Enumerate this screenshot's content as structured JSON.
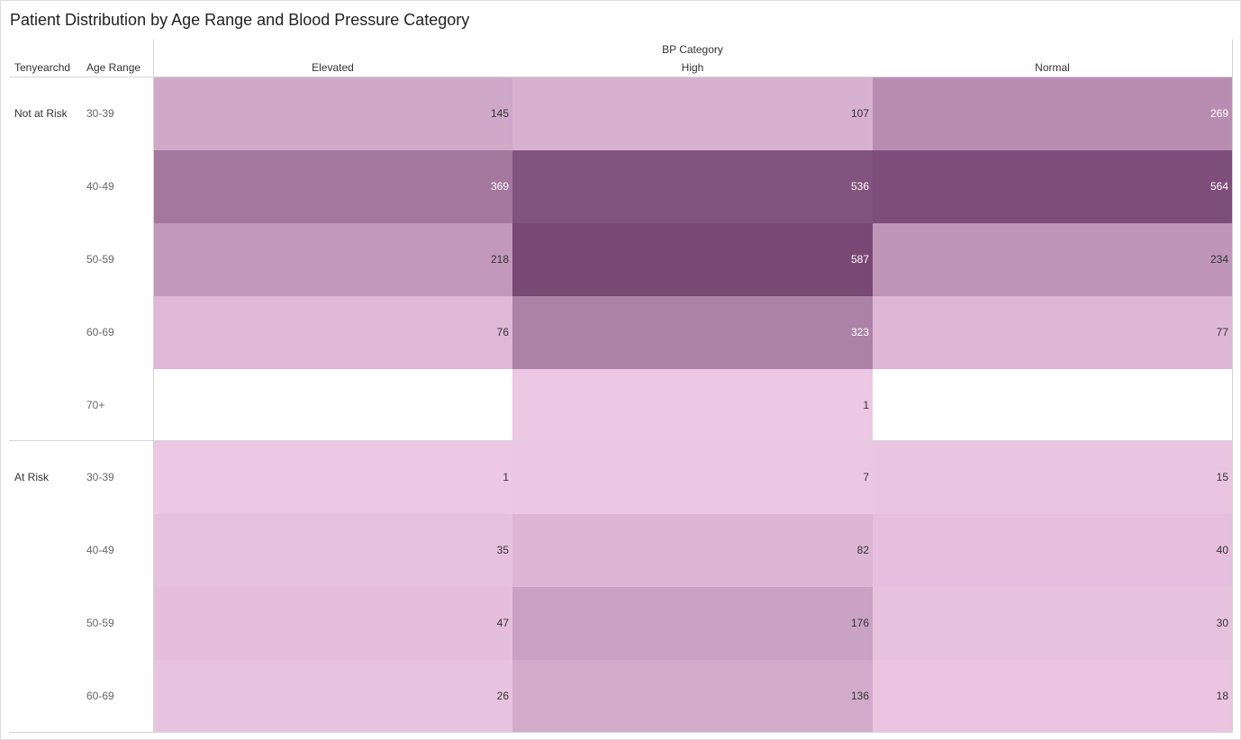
{
  "chart_data": {
    "type": "heatmap",
    "title": "Patient Distribution by Age Range and Blood Pressure Category",
    "column_group_label": "BP Category",
    "row_header_labels": [
      "Tenyearchd",
      "Age Range"
    ],
    "columns": [
      "Elevated",
      "High",
      "Normal"
    ],
    "groups": [
      {
        "name": "Not at Risk",
        "rows": [
          {
            "age": "30-39",
            "values": [
              145,
              107,
              269
            ]
          },
          {
            "age": "40-49",
            "values": [
              369,
              536,
              564
            ]
          },
          {
            "age": "50-59",
            "values": [
              218,
              587,
              234
            ]
          },
          {
            "age": "60-69",
            "values": [
              76,
              323,
              77
            ]
          },
          {
            "age": "70+",
            "values": [
              null,
              1,
              null
            ]
          }
        ]
      },
      {
        "name": "At Risk",
        "rows": [
          {
            "age": "30-39",
            "values": [
              1,
              7,
              15
            ]
          },
          {
            "age": "40-49",
            "values": [
              35,
              82,
              40
            ]
          },
          {
            "age": "50-59",
            "values": [
              47,
              176,
              30
            ]
          },
          {
            "age": "60-69",
            "values": [
              26,
              136,
              18
            ]
          }
        ]
      }
    ],
    "value_range": [
      1,
      587
    ],
    "color_scale": {
      "low": "#edc8e4",
      "high": "#794875"
    }
  }
}
